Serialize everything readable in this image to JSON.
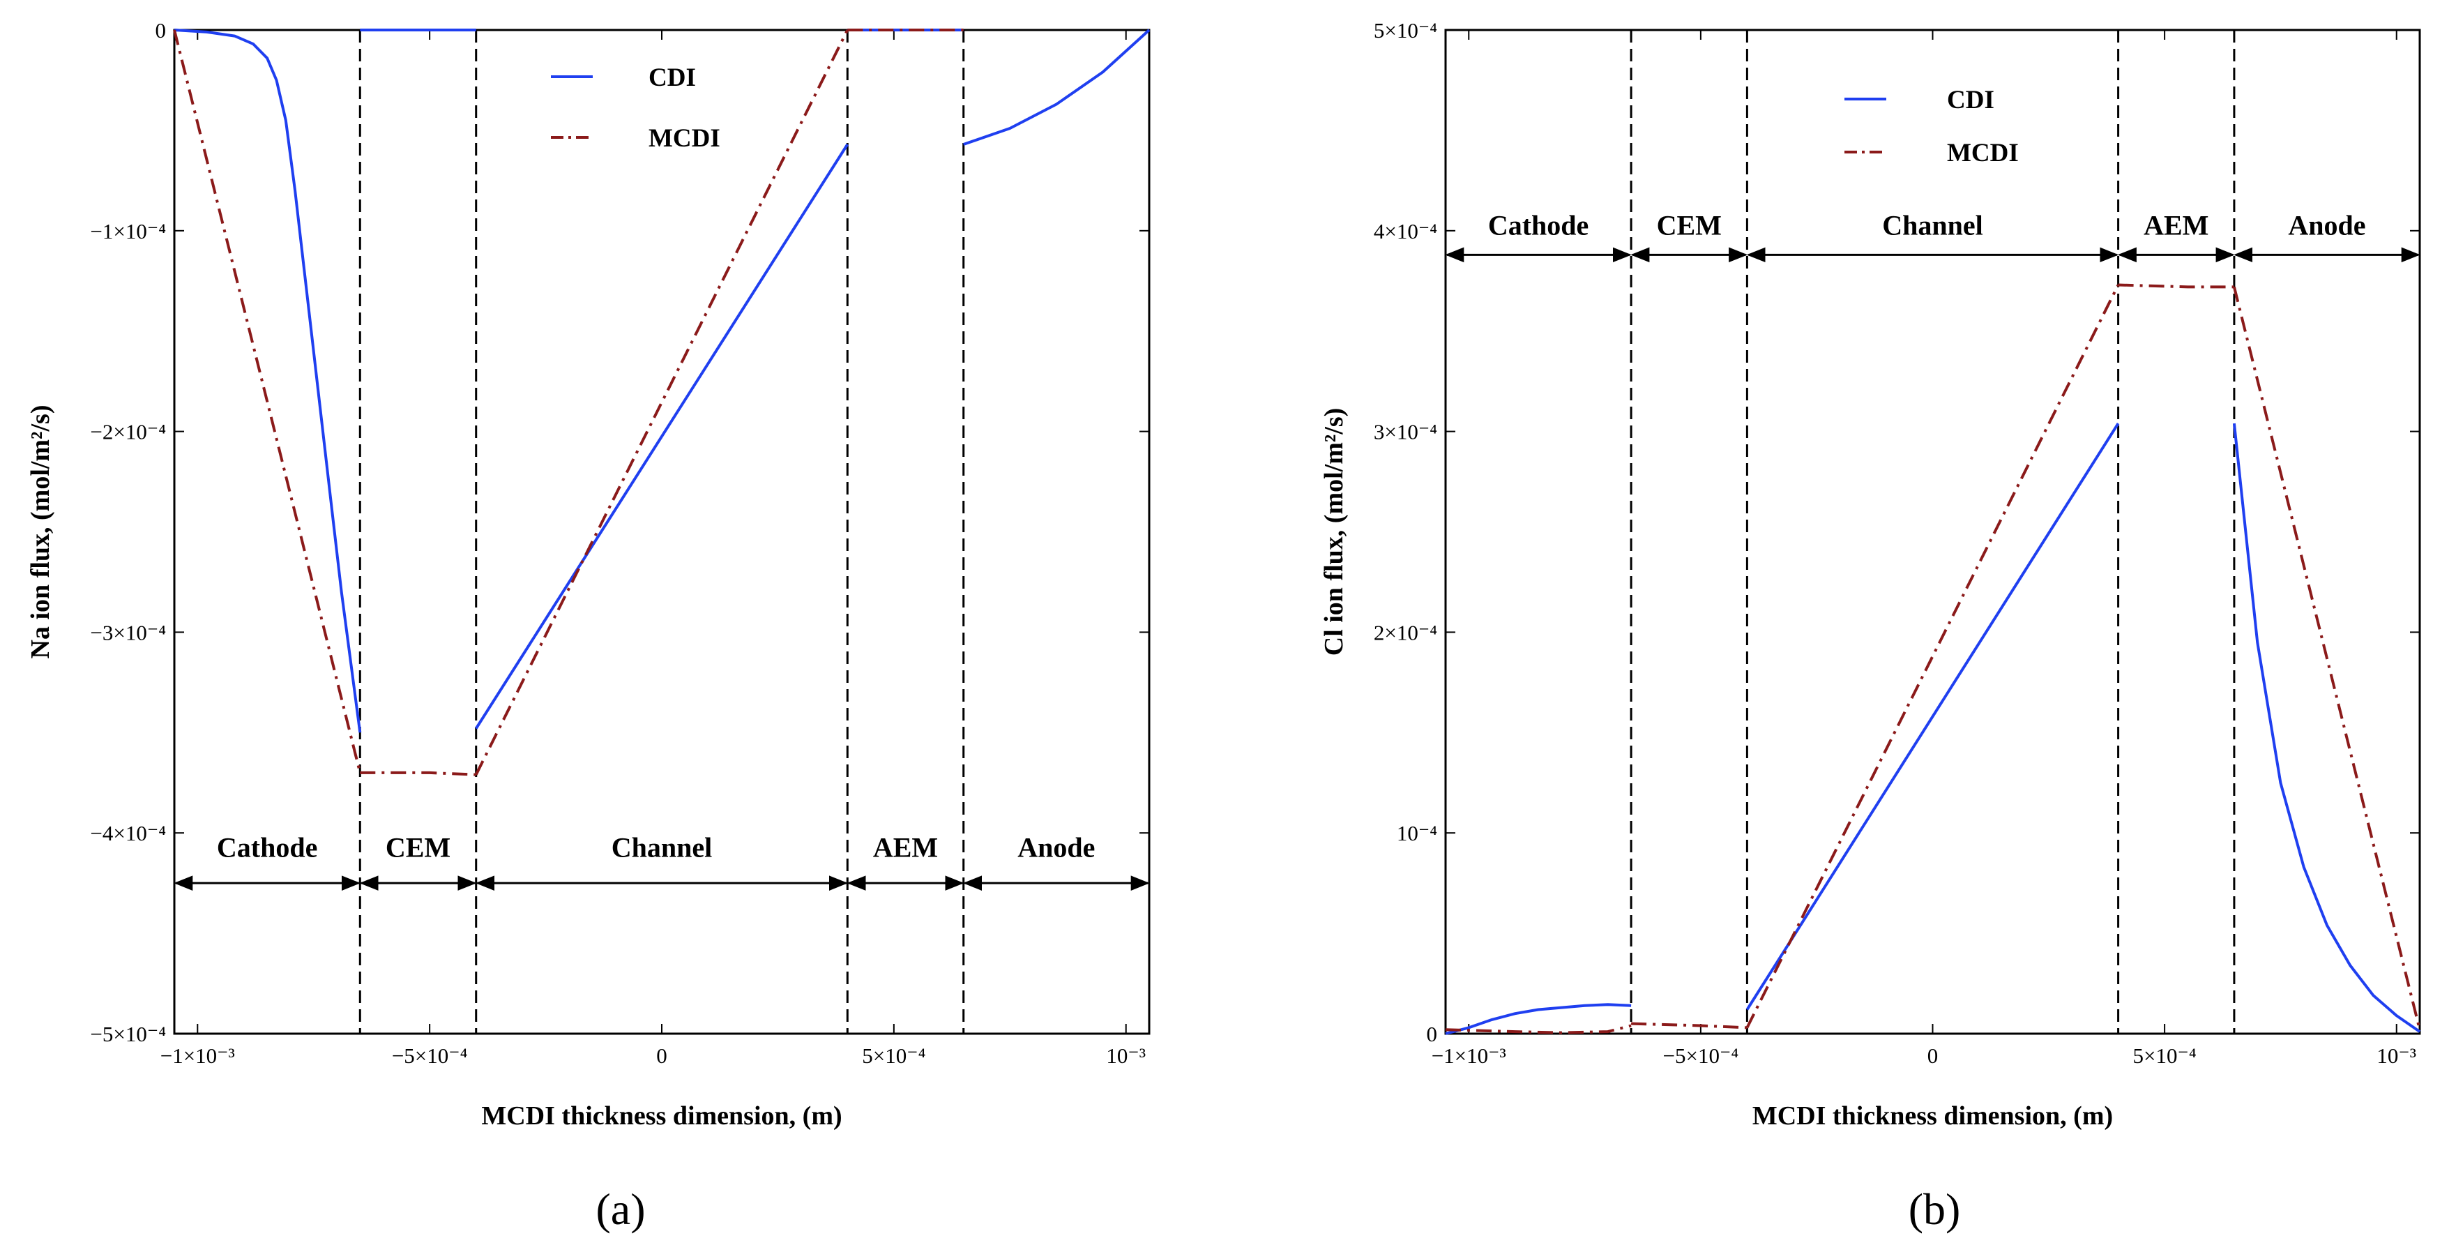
{
  "chart_data": [
    {
      "type": "line",
      "panel_label": "(a)",
      "xlabel": "MCDI thickness dimension, (m)",
      "ylabel": "Na ion flux, (mol/m²/s)",
      "xlim": [
        -0.00105,
        0.00105
      ],
      "ylim": [
        -0.0005,
        0
      ],
      "x_ticks": [
        {
          "value": -0.001,
          "label": "−1×10⁻³"
        },
        {
          "value": -0.0005,
          "label": "−5×10⁻⁴"
        },
        {
          "value": 0,
          "label": "0"
        },
        {
          "value": 0.0005,
          "label": "5×10⁻⁴"
        },
        {
          "value": 0.001,
          "label": "10⁻³"
        }
      ],
      "y_ticks": [
        {
          "value": 0,
          "label": "0"
        },
        {
          "value": -0.0001,
          "label": "−1×10⁻⁴"
        },
        {
          "value": -0.0002,
          "label": "−2×10⁻⁴"
        },
        {
          "value": -0.0003,
          "label": "−3×10⁻⁴"
        },
        {
          "value": -0.0004,
          "label": "−4×10⁻⁴"
        },
        {
          "value": -0.0005,
          "label": "−5×10⁻⁴"
        }
      ],
      "boundaries": [
        -0.00065,
        -0.0004,
        0.0004,
        0.00065
      ],
      "region_arrow_y": -0.000425,
      "region_label_y": -0.000412,
      "regions": [
        {
          "label": "Cathode",
          "from": -0.00105,
          "to": -0.00065
        },
        {
          "label": "CEM",
          "from": -0.00065,
          "to": -0.0004
        },
        {
          "label": "Channel",
          "from": -0.0004,
          "to": 0.0004
        },
        {
          "label": "AEM",
          "from": 0.0004,
          "to": 0.00065
        },
        {
          "label": "Anode",
          "from": 0.00065,
          "to": 0.00105
        }
      ],
      "legend": {
        "position": "top-center",
        "entries": [
          "CDI",
          "MCDI"
        ]
      },
      "series": [
        {
          "name": "CDI",
          "color": "#1f3ff0",
          "dash": "solid",
          "segments": [
            {
              "x": [
                -0.00105,
                -0.00098,
                -0.00092,
                -0.00088,
                -0.00085,
                -0.00083,
                -0.00081,
                -0.00079,
                -0.00077,
                -0.00075,
                -0.00073,
                -0.00071,
                -0.00069,
                -0.00067,
                -0.00065
              ],
              "y": [
                0,
                -1e-06,
                -3e-06,
                -7e-06,
                -1.4e-05,
                -2.5e-05,
                -4.5e-05,
                -8e-05,
                -0.00012,
                -0.00016,
                -0.0002,
                -0.00024,
                -0.00028,
                -0.000315,
                -0.00035
              ]
            },
            {
              "x": [
                -0.00065,
                -0.0004
              ],
              "y": [
                0,
                0
              ]
            },
            {
              "x": [
                -0.0004,
                0.0004
              ],
              "y": [
                -0.000348,
                -5.7e-05
              ]
            },
            {
              "x": [
                0.0004,
                0.00065
              ],
              "y": [
                0,
                0
              ]
            },
            {
              "x": [
                0.00065,
                0.00075,
                0.00085,
                0.00095,
                0.00105
              ],
              "y": [
                -5.7e-05,
                -4.9e-05,
                -3.7e-05,
                -2.1e-05,
                0
              ]
            }
          ]
        },
        {
          "name": "MCDI",
          "color": "#8b1a1a",
          "dash": "dashdot",
          "segments": [
            {
              "x": [
                -0.00105,
                -0.00065
              ],
              "y": [
                0,
                -0.00037
              ]
            },
            {
              "x": [
                -0.00065,
                -0.0005,
                -0.0004
              ],
              "y": [
                -0.00037,
                -0.00037,
                -0.000371
              ]
            },
            {
              "x": [
                -0.0004,
                0.0004
              ],
              "y": [
                -0.000371,
                0
              ]
            },
            {
              "x": [
                0.0004,
                0.00065
              ],
              "y": [
                0,
                0
              ]
            }
          ]
        }
      ]
    },
    {
      "type": "line",
      "panel_label": "(b)",
      "xlabel": "MCDI thickness dimension, (m)",
      "ylabel": "Cl ion flux, (mol/m²/s)",
      "xlim": [
        -0.00105,
        0.00105
      ],
      "ylim": [
        0,
        0.0005
      ],
      "x_ticks": [
        {
          "value": -0.001,
          "label": "−1×10⁻³"
        },
        {
          "value": -0.0005,
          "label": "−5×10⁻⁴"
        },
        {
          "value": 0,
          "label": "0"
        },
        {
          "value": 0.0005,
          "label": "5×10⁻⁴"
        },
        {
          "value": 0.001,
          "label": "10⁻³"
        }
      ],
      "y_ticks": [
        {
          "value": 0,
          "label": "0"
        },
        {
          "value": 0.0001,
          "label": "10⁻⁴"
        },
        {
          "value": 0.0002,
          "label": "2×10⁻⁴"
        },
        {
          "value": 0.0003,
          "label": "3×10⁻⁴"
        },
        {
          "value": 0.0004,
          "label": "4×10⁻⁴"
        },
        {
          "value": 0.0005,
          "label": "5×10⁻⁴"
        }
      ],
      "boundaries": [
        -0.00065,
        -0.0004,
        0.0004,
        0.00065
      ],
      "region_arrow_y": 0.000388,
      "region_label_y": 0.000398,
      "regions": [
        {
          "label": "Cathode",
          "from": -0.00105,
          "to": -0.00065
        },
        {
          "label": "CEM",
          "from": -0.00065,
          "to": -0.0004
        },
        {
          "label": "Channel",
          "from": -0.0004,
          "to": 0.0004
        },
        {
          "label": "AEM",
          "from": 0.0004,
          "to": 0.00065
        },
        {
          "label": "Anode",
          "from": 0.00065,
          "to": 0.00105
        }
      ],
      "legend": {
        "position": "top-left",
        "entries": [
          "CDI",
          "MCDI"
        ]
      },
      "series": [
        {
          "name": "CDI",
          "color": "#1f3ff0",
          "dash": "solid",
          "segments": [
            {
              "x": [
                -0.00105,
                -0.001,
                -0.00095,
                -0.0009,
                -0.00085,
                -0.0008,
                -0.00075,
                -0.0007,
                -0.00065
              ],
              "y": [
                0,
                3e-06,
                7e-06,
                1e-05,
                1.2e-05,
                1.3e-05,
                1.4e-05,
                1.45e-05,
                1.4e-05
              ]
            },
            {
              "x": [
                -0.0004,
                0.0004
              ],
              "y": [
                1.2e-05,
                0.000304
              ]
            },
            {
              "x": [
                0.00065,
                0.0007,
                0.00075,
                0.0008,
                0.00085,
                0.0009,
                0.00095,
                0.001,
                0.00105
              ],
              "y": [
                0.000304,
                0.000195,
                0.000125,
                8.3e-05,
                5.4e-05,
                3.4e-05,
                1.9e-05,
                9e-06,
                1e-06
              ]
            }
          ]
        },
        {
          "name": "MCDI",
          "color": "#8b1a1a",
          "dash": "dashdot",
          "segments": [
            {
              "x": [
                -0.00105,
                -0.0009,
                -0.0008,
                -0.0007,
                -0.00065
              ],
              "y": [
                2e-06,
                1e-06,
                5e-07,
                1e-06,
                4e-06
              ]
            },
            {
              "x": [
                -0.00065,
                -0.0005,
                -0.0004
              ],
              "y": [
                5e-06,
                4e-06,
                3e-06
              ]
            },
            {
              "x": [
                -0.0004,
                0.0004
              ],
              "y": [
                3e-06,
                0.000373
              ]
            },
            {
              "x": [
                0.0004,
                0.00055,
                0.00065
              ],
              "y": [
                0.000373,
                0.000372,
                0.000372
              ]
            },
            {
              "x": [
                0.00065,
                0.00105
              ],
              "y": [
                0.000372,
                2e-06
              ]
            }
          ]
        }
      ]
    }
  ]
}
